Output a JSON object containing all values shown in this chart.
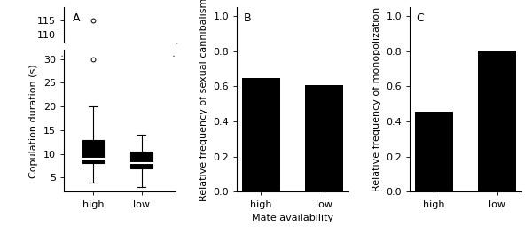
{
  "panel_A_label": "A",
  "panel_B_label": "B",
  "panel_C_label": "C",
  "xlabel_B": "Mate availability",
  "ylabel_A": "Copulation duration (s)",
  "ylabel_B": "Relative frequency of sexual cannibalism",
  "ylabel_C": "Relative frequency of monopolization",
  "categories": [
    "high",
    "low"
  ],
  "boxplot_high": {
    "median": 9,
    "q1": 8,
    "q3": 13,
    "whisker_low": 4,
    "whisker_high": 20,
    "outliers": [
      30,
      115
    ]
  },
  "boxplot_low": {
    "median": 8,
    "q1": 7,
    "q3": 10.5,
    "whisker_low": 3,
    "whisker_high": 14,
    "outliers": []
  },
  "lower_ylim": [
    2,
    32
  ],
  "upper_ylim": [
    107,
    120
  ],
  "lower_yticks": [
    5,
    10,
    15,
    20,
    25,
    30
  ],
  "upper_yticks": [
    110,
    115
  ],
  "bar_B": [
    0.645,
    0.605
  ],
  "bar_C": [
    0.455,
    0.805
  ],
  "bar_color": "#000000",
  "background_color": "#ffffff",
  "font_size": 8,
  "title_font_size": 9,
  "bar_ylim": [
    0.0,
    1.05
  ],
  "bar_yticks": [
    0.0,
    0.2,
    0.4,
    0.6,
    0.8,
    1.0
  ]
}
